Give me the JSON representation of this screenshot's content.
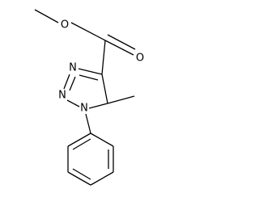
{
  "atoms": [
    {
      "label": "O"
    },
    {
      "label": "O"
    },
    {
      "label": "N"
    },
    {
      "label": "N"
    },
    {
      "label": "N"
    }
  ]
}
